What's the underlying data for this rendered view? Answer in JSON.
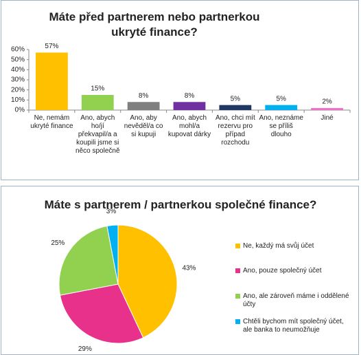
{
  "chart_data": [
    {
      "type": "bar",
      "title": "Máte před partnerem nebo partnerkou ukryté finance?",
      "categories": [
        "Ne, nemám ukryté finance",
        "Ano, abych ho/jí překvapil/a a koupili jsme si něco společně",
        "Ano, aby nevěděl/a co si kupuji",
        "Ano, abych mohl/a kupovat dárky",
        "Ano, chci mít rezervu pro případ rozchodu",
        "Ano, neznáme se příliš dlouho",
        "Jiné"
      ],
      "values": [
        57,
        15,
        8,
        8,
        5,
        5,
        2
      ],
      "value_labels": [
        "57%",
        "15%",
        "8%",
        "8%",
        "5%",
        "5%",
        "2%"
      ],
      "colors": [
        "#ffc000",
        "#92d050",
        "#7f7f7f",
        "#7030a0",
        "#1f3864",
        "#00b0f0",
        "#f06ec8"
      ],
      "ylim": [
        0,
        60
      ],
      "yticks": [
        {
          "value": 0,
          "label": "0%"
        },
        {
          "value": 10,
          "label": "10%"
        },
        {
          "value": 20,
          "label": "20%"
        },
        {
          "value": 30,
          "label": "30%"
        },
        {
          "value": 40,
          "label": "40%"
        },
        {
          "value": 50,
          "label": "50%"
        },
        {
          "value": 60,
          "label": "60%"
        }
      ]
    },
    {
      "type": "pie",
      "title": "Máte s partnerem / partnerkou společné finance?",
      "categories": [
        "Ne, každý má svůj účet",
        "Ano, pouze společný účet",
        "Ano, ale zároveň máme i oddělené účty",
        "Chtěli bychom mít společný účet, ale banka to neumožňuje"
      ],
      "values": [
        43,
        29,
        25,
        3
      ],
      "value_labels": [
        "43%",
        "29%",
        "25%",
        "3%"
      ],
      "colors": [
        "#ffc000",
        "#e8318a",
        "#92d050",
        "#00b0f0"
      ],
      "legend": "right"
    }
  ]
}
